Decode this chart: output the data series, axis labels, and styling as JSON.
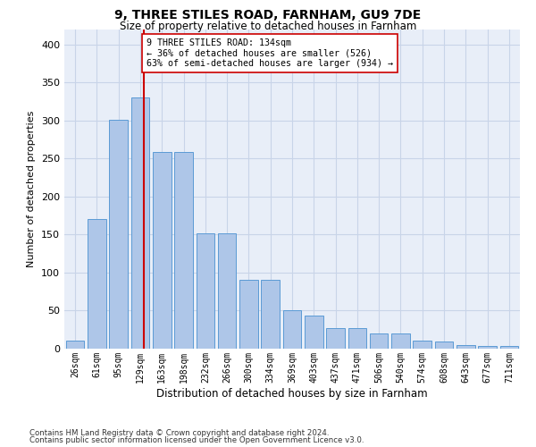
{
  "title1": "9, THREE STILES ROAD, FARNHAM, GU9 7DE",
  "title2": "Size of property relative to detached houses in Farnham",
  "xlabel": "Distribution of detached houses by size in Farnham",
  "ylabel": "Number of detached properties",
  "bar_labels": [
    "26sqm",
    "61sqm",
    "95sqm",
    "129sqm",
    "163sqm",
    "198sqm",
    "232sqm",
    "266sqm",
    "300sqm",
    "334sqm",
    "369sqm",
    "403sqm",
    "437sqm",
    "471sqm",
    "506sqm",
    "540sqm",
    "574sqm",
    "608sqm",
    "643sqm",
    "677sqm",
    "711sqm"
  ],
  "bar_values": [
    10,
    170,
    301,
    330,
    258,
    258,
    152,
    152,
    90,
    90,
    50,
    43,
    27,
    27,
    20,
    20,
    10,
    9,
    5,
    3,
    3
  ],
  "bar_color": "#aec6e8",
  "bar_edge_color": "#5b9bd5",
  "grid_color": "#c8d4e8",
  "background_color": "#e8eef8",
  "vline_color": "#cc0000",
  "annotation_text": "9 THREE STILES ROAD: 134sqm\n← 36% of detached houses are smaller (526)\n63% of semi-detached houses are larger (934) →",
  "annotation_box_color": "#ffffff",
  "annotation_box_edge_color": "#cc0000",
  "footer1": "Contains HM Land Registry data © Crown copyright and database right 2024.",
  "footer2": "Contains public sector information licensed under the Open Government Licence v3.0.",
  "ylim": [
    0,
    420
  ],
  "yticks": [
    0,
    50,
    100,
    150,
    200,
    250,
    300,
    350,
    400
  ]
}
